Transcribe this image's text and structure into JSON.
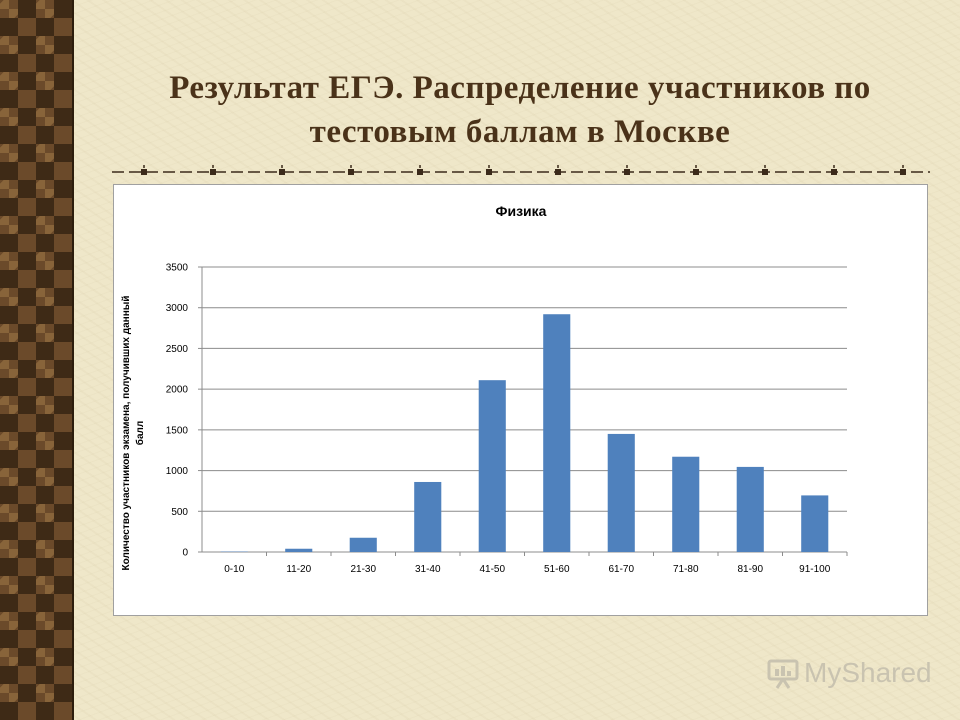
{
  "slide": {
    "title_line1": "Результат ЕГЭ. Распределение участников по",
    "title_line2": "тестовым баллам в Москве",
    "logo_text": "MyShared"
  },
  "colors": {
    "bar": "#4f81bd",
    "title": "#4a3219",
    "divider": "#3b2a1a"
  },
  "chart_data": {
    "type": "bar",
    "title": "Физика",
    "xlabel": "",
    "ylabel_line1": "Количество участников экзамена, получивших данный",
    "ylabel_line2": "балл",
    "categories": [
      "0-10",
      "11-20",
      "21-30",
      "31-40",
      "41-50",
      "51-60",
      "61-70",
      "71-80",
      "81-90",
      "91-100"
    ],
    "values": [
      5,
      40,
      175,
      860,
      2110,
      2920,
      1450,
      1170,
      1045,
      695
    ],
    "ylim": [
      0,
      3500
    ],
    "yticks": [
      0,
      500,
      1000,
      1500,
      2000,
      2500,
      3000,
      3500
    ],
    "grid": true,
    "legend": "none"
  }
}
